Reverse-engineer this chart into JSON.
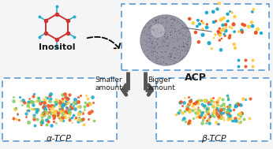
{
  "inositol_label": "Inositol",
  "acp_label": "ACP",
  "alpha_label": "α-TCP",
  "beta_label": "β-TCP",
  "smaller_label": "Smaller\namount",
  "bigger_label": "Bigger\namount",
  "bg_color": "#f5f5f5",
  "box_color": "#5b9bd5",
  "text_color": "#1a1a1a",
  "sphere_color": "#888899",
  "inositol_ring_color": "#cc3333",
  "inositol_spoke_color": "#22aacc",
  "atom_colors": [
    "#22aacc",
    "#ee5522",
    "#ffcc44",
    "#88cc66"
  ],
  "seed": 7
}
